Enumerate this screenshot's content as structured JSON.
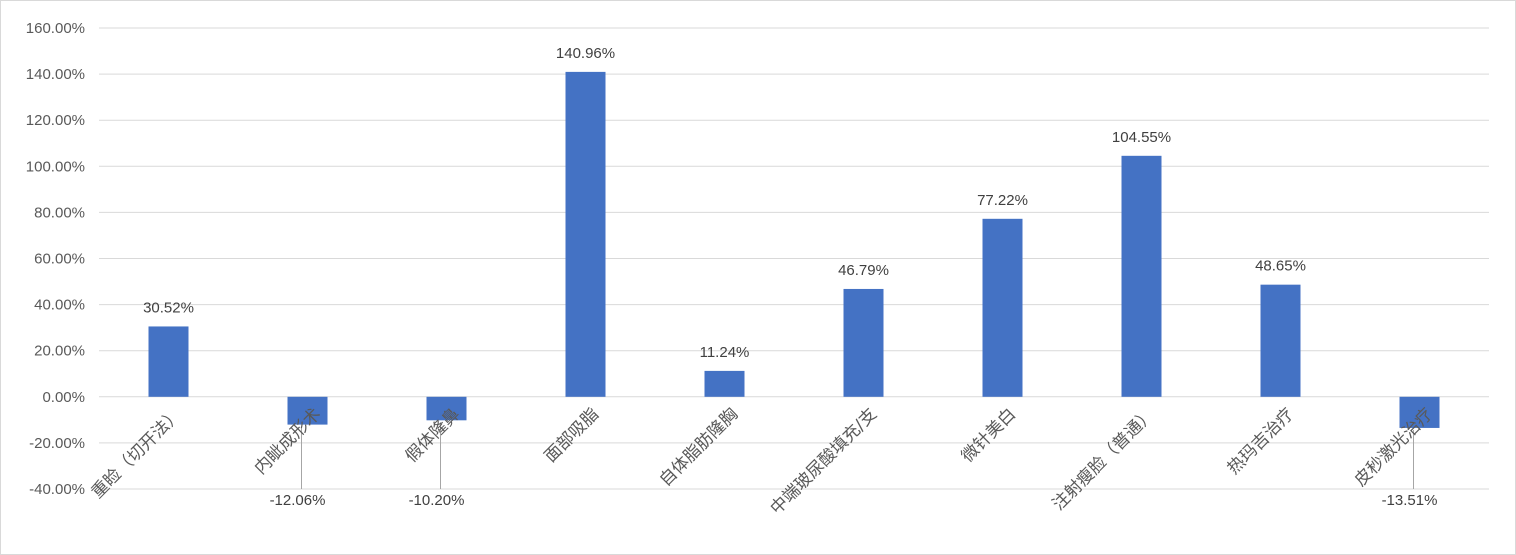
{
  "chart_data": {
    "type": "bar",
    "categories": [
      "重睑（切开法）",
      "内眦成形术",
      "假体隆鼻",
      "面部吸脂",
      "自体脂肪隆胸",
      "中端玻尿酸填充/支",
      "微针美白",
      "注射瘦脸（普通）",
      "热玛吉治疗",
      "皮秒激光治疗"
    ],
    "values": [
      30.52,
      -12.06,
      -10.2,
      140.96,
      11.24,
      46.79,
      77.22,
      104.55,
      48.65,
      -13.51
    ],
    "data_labels": [
      "30.52%",
      "-12.06%",
      "-10.20%",
      "140.96%",
      "11.24%",
      "46.79%",
      "77.22%",
      "104.55%",
      "48.65%",
      "-13.51%"
    ],
    "yticks": [
      160,
      140,
      120,
      100,
      80,
      60,
      40,
      20,
      0,
      -20,
      -40
    ],
    "ytick_labels": [
      "160.00%",
      "140.00%",
      "120.00%",
      "100.00%",
      "80.00%",
      "60.00%",
      "40.00%",
      "20.00%",
      "0.00%",
      "-20.00%",
      "-40.00%"
    ],
    "ylim": [
      -40,
      160
    ],
    "title": "",
    "xlabel": "",
    "ylabel": "",
    "grid": true,
    "legend": "none",
    "bar_color": "#4472c4"
  }
}
